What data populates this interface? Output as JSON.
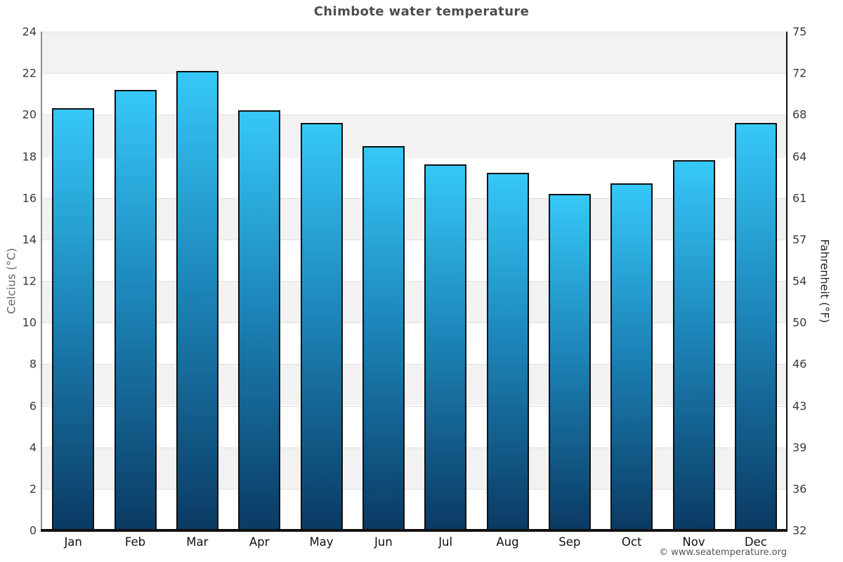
{
  "page": {
    "title": "Chimbote water temperature",
    "copyright": "© www.seatemperature.org"
  },
  "chart_data": {
    "type": "bar",
    "title": "Chimbote water temperature",
    "categories": [
      "Jan",
      "Feb",
      "Mar",
      "Apr",
      "May",
      "Jun",
      "Jul",
      "Aug",
      "Sep",
      "Oct",
      "Nov",
      "Dec"
    ],
    "series": [
      {
        "name": "Water temperature (°C)",
        "values": [
          20.3,
          21.2,
          22.1,
          20.2,
          19.6,
          18.5,
          17.6,
          17.2,
          16.2,
          16.7,
          17.8,
          19.6
        ]
      }
    ],
    "ylabel_left": "Celcius (°C)",
    "ylabel_right": "Fahrenheit (°F)",
    "xlabel": "",
    "ylim": [
      0,
      24
    ],
    "y_ticks_celsius": [
      24,
      22,
      20,
      18,
      16,
      14,
      12,
      10,
      8,
      6,
      4,
      2,
      0
    ],
    "y_ticks_fahrenheit": [
      75,
      72,
      68,
      64,
      61,
      57,
      54,
      50,
      46,
      43,
      39,
      36,
      32
    ],
    "grid": "horizontal alternating bands, gray/white every 2°C",
    "legend": "none",
    "colors": {
      "bar_gradient_top": "#36c8f8",
      "bar_gradient_mid": "#1d86ba",
      "bar_gradient_bottom": "#0a3a63",
      "bar_border": "#111111",
      "band_gray": "#f2f2f2",
      "band_white": "#ffffff",
      "gridline": "#e0e0e0",
      "left_axis_line": "#8c8c8c",
      "right_axis_line": "#111111",
      "bottom_axis_line": "#111111",
      "title_color": "#4d4d4d",
      "tick_label_color": "#3a3a3a"
    }
  }
}
